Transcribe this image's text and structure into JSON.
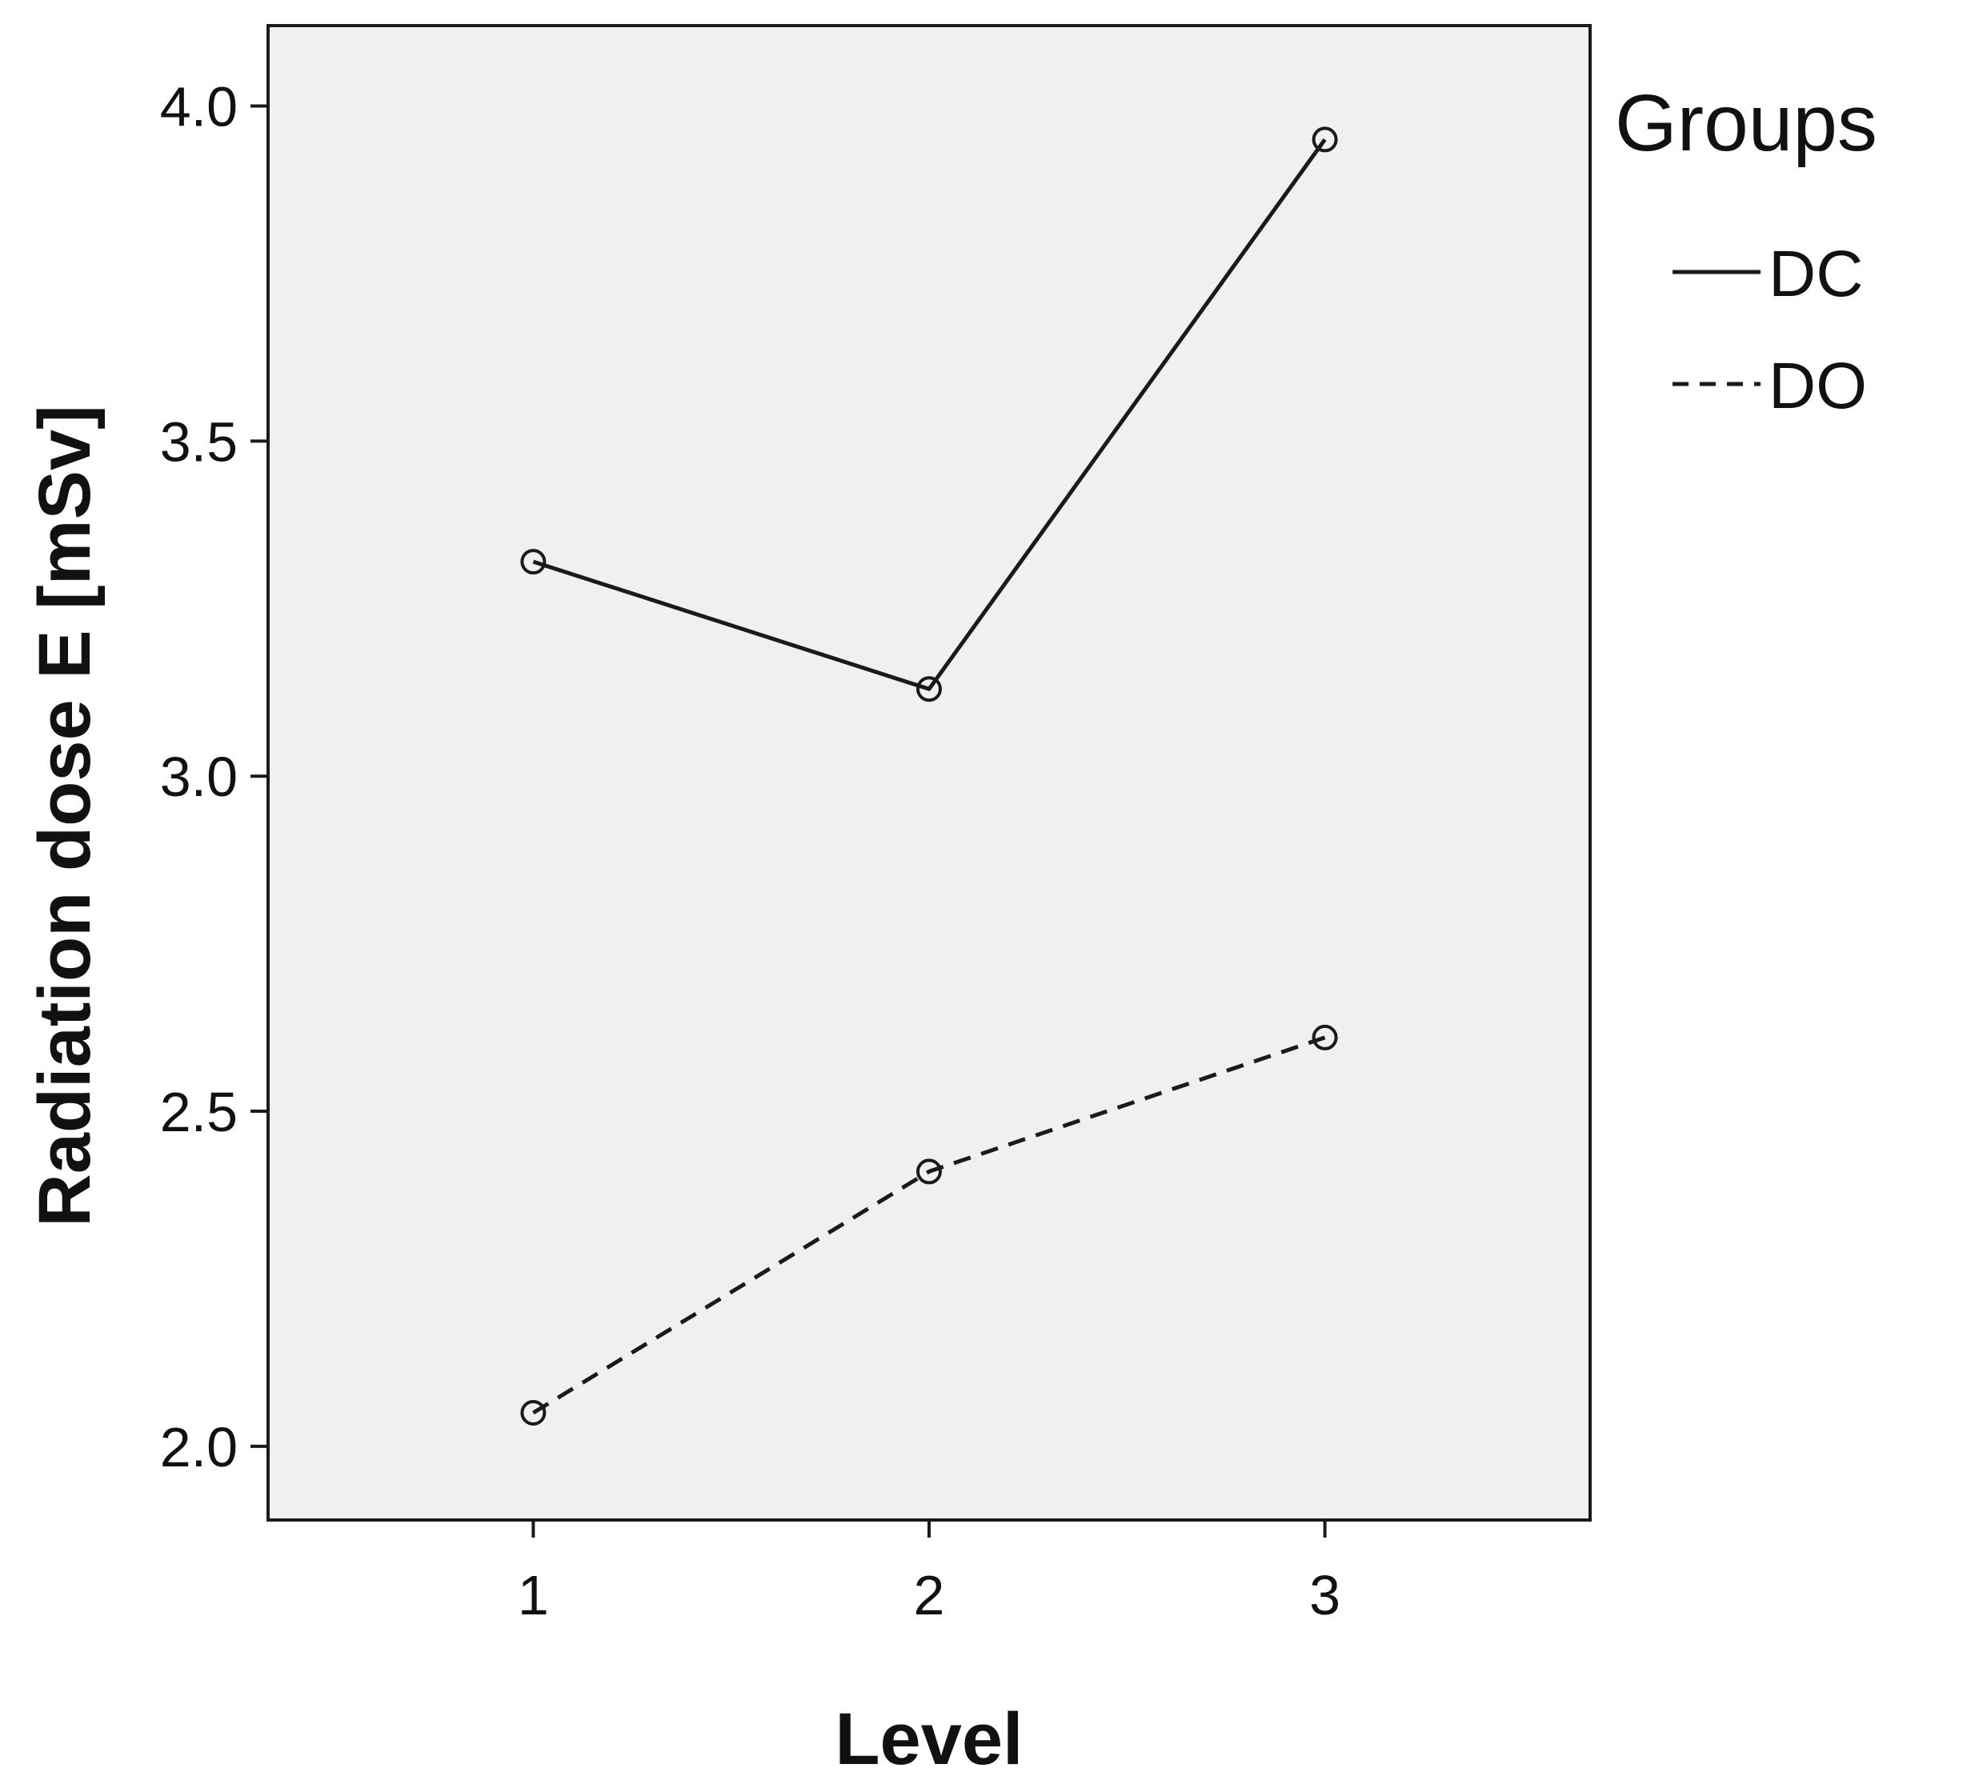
{
  "chart_data": {
    "type": "line",
    "x": [
      1,
      2,
      3
    ],
    "x_tick_labels": [
      "1",
      "2",
      "3"
    ],
    "y_ticks": [
      2.0,
      2.5,
      3.0,
      3.5,
      4.0
    ],
    "y_tick_labels": [
      "2.0",
      "2.5",
      "3.0",
      "3.5",
      "4.0"
    ],
    "xlabel": "Level",
    "ylabel": "Radiation dose E [mSv]",
    "xlim": [
      0.33,
      3.67
    ],
    "ylim": [
      1.89,
      4.12
    ],
    "grid": false,
    "legend_position": "right",
    "legend_title": "Groups",
    "series": [
      {
        "name": "DC",
        "values": [
          3.32,
          3.13,
          3.95
        ],
        "line_style": "solid",
        "marker": "open-circle",
        "color": "#1a1a1a"
      },
      {
        "name": "DO",
        "values": [
          2.05,
          2.41,
          2.61
        ],
        "line_style": "dashed",
        "marker": "open-circle",
        "color": "#1a1a1a"
      }
    ],
    "plot_background": "#f0f0f0"
  }
}
